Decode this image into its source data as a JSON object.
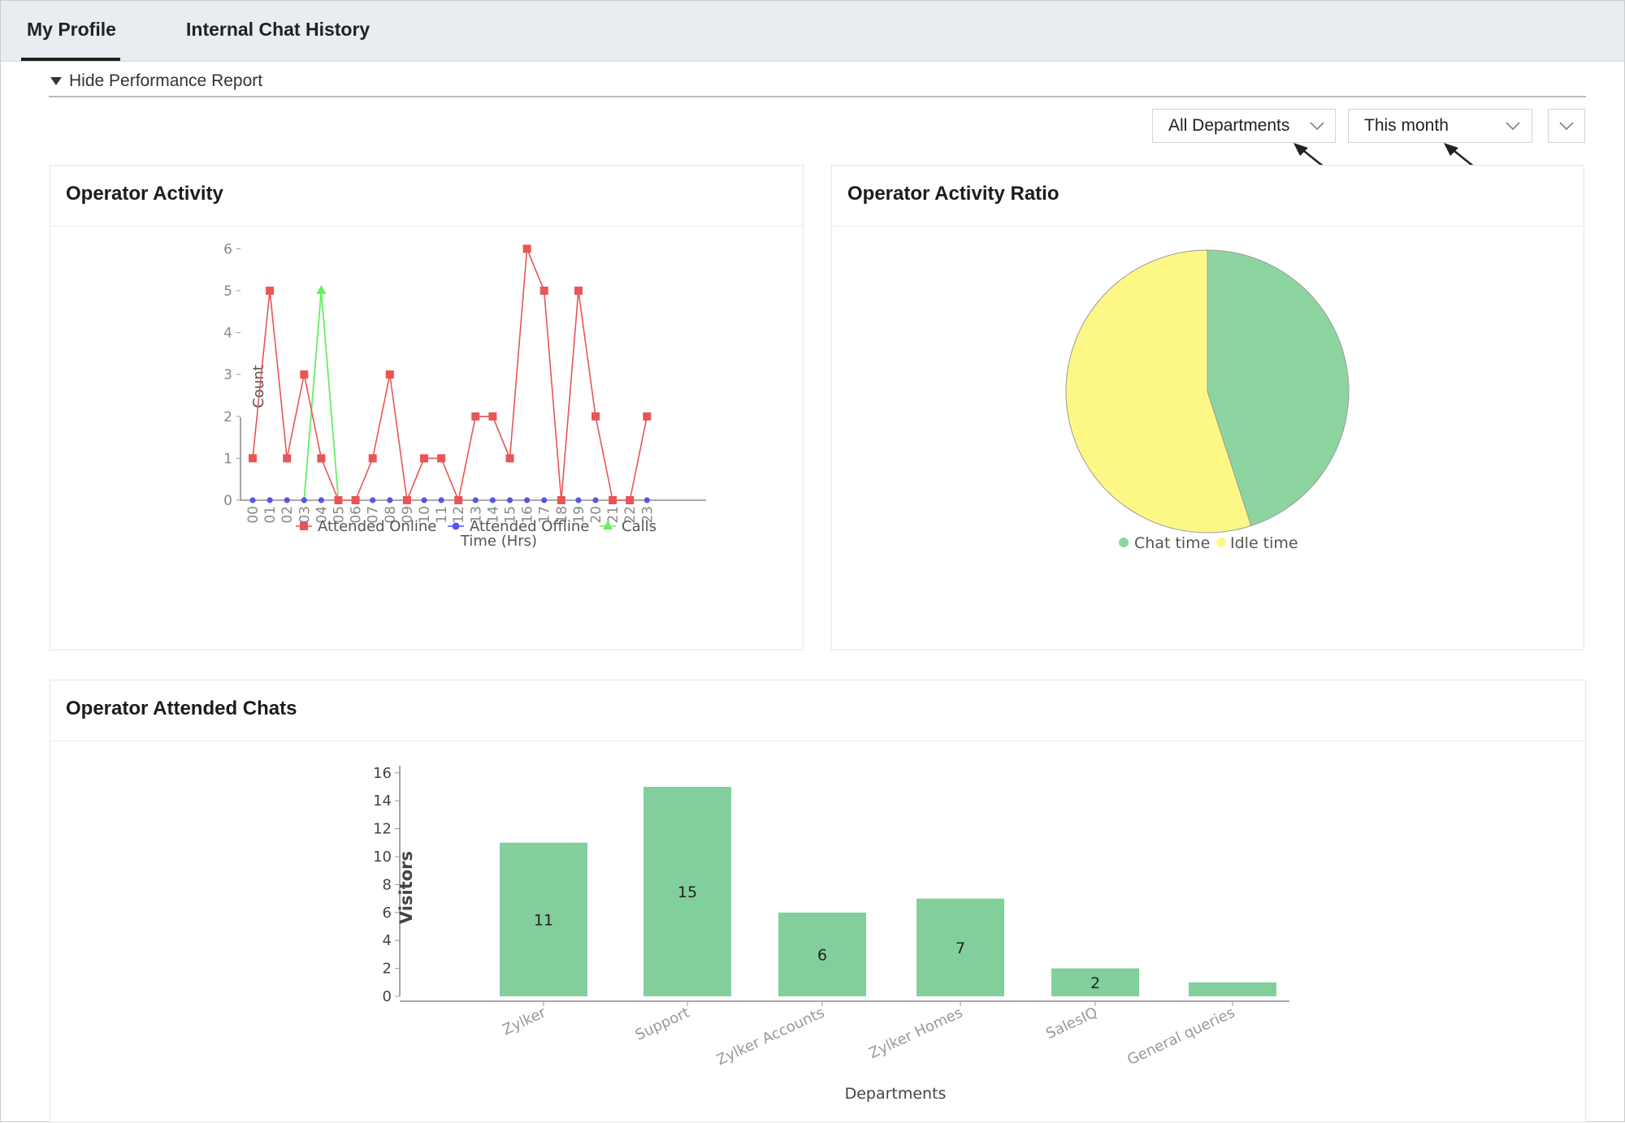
{
  "tabs": [
    {
      "label": "My Profile",
      "active": true
    },
    {
      "label": "Internal Chat History",
      "active": false
    }
  ],
  "report_toggle": {
    "label": "Hide Performance Report",
    "icon": "triangle-down-icon"
  },
  "filters": {
    "department": "All Departments",
    "period": "This month",
    "more": "chevron-down-icon"
  },
  "panels": {
    "activity_title": "Operator Activity",
    "ratio_title": "Operator Activity Ratio",
    "attended_title": "Operator Attended Chats"
  },
  "colors": {
    "attended_online": "#e85555",
    "attended_offline": "#5555e8",
    "calls": "#66ee66",
    "chat_time": "#8dd5a0",
    "idle_time": "#fdf885",
    "bars": "#82cf9c"
  },
  "chart_data": [
    {
      "type": "line",
      "title": "Operator Activity",
      "xlabel": "Time (Hrs)",
      "ylabel": "Count",
      "x": [
        "00",
        "01",
        "02",
        "03",
        "04",
        "05",
        "06",
        "07",
        "08",
        "09",
        "10",
        "11",
        "12",
        "13",
        "14",
        "15",
        "16",
        "17",
        "18",
        "19",
        "20",
        "21",
        "22",
        "23"
      ],
      "ylim": [
        0,
        6
      ],
      "yticks": [
        "0",
        "1",
        "2",
        "3",
        "4",
        "5",
        "6"
      ],
      "series": [
        {
          "name": "Attended Online",
          "values": [
            1,
            5,
            1,
            3,
            1,
            0,
            0,
            1,
            3,
            0,
            1,
            1,
            0,
            2,
            2,
            1,
            6,
            5,
            0,
            5,
            2,
            0,
            0,
            2
          ]
        },
        {
          "name": "Attended Offline",
          "values": [
            0,
            0,
            0,
            0,
            0,
            0,
            0,
            0,
            0,
            0,
            0,
            0,
            0,
            0,
            0,
            0,
            0,
            0,
            0,
            0,
            0,
            0,
            0,
            0
          ]
        },
        {
          "name": "Calls",
          "values": [
            null,
            null,
            null,
            0,
            5,
            0,
            null,
            null,
            null,
            null,
            null,
            null,
            null,
            null,
            null,
            null,
            null,
            null,
            null,
            null,
            null,
            null,
            null,
            null
          ]
        }
      ],
      "legend": "bottom"
    },
    {
      "type": "pie",
      "title": "Operator Activity Ratio",
      "labels": [
        "Chat time",
        "Idle time"
      ],
      "values": [
        45,
        55
      ],
      "legend": "bottom"
    },
    {
      "type": "bar",
      "title": "Operator Attended Chats",
      "categories": [
        "Zylker",
        "Support",
        "Zylker Accounts",
        "Zylker Homes",
        "SalesIQ",
        "General queries"
      ],
      "values": [
        11,
        15,
        6,
        7,
        2,
        1
      ],
      "data_labels": [
        "11",
        "15",
        "6",
        "7",
        "2",
        ""
      ],
      "xlabel": "Departments",
      "ylabel": "Visitors",
      "ylim": [
        0,
        16
      ],
      "yticks": [
        "0",
        "2",
        "4",
        "6",
        "8",
        "10",
        "12",
        "14",
        "16"
      ]
    }
  ]
}
